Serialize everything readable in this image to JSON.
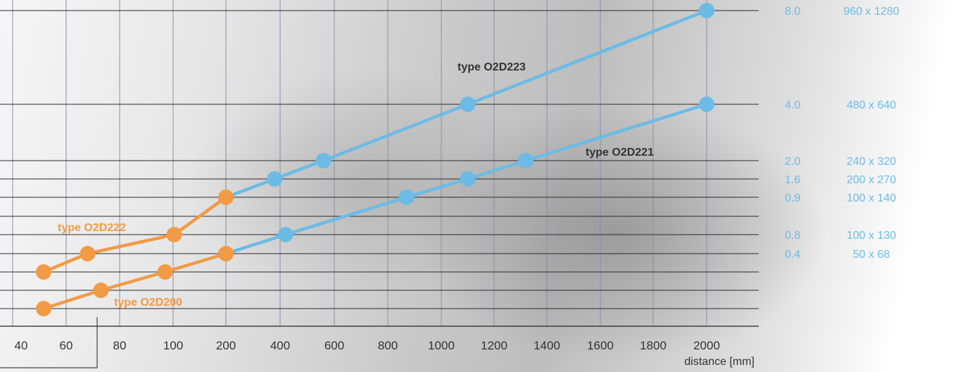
{
  "chart_data": {
    "type": "line",
    "xlabel": "distance [mm]",
    "x_ticks": [
      "40",
      "60",
      "80",
      "100",
      "200",
      "400",
      "600",
      "800",
      "1000",
      "1200",
      "1400",
      "1600",
      "1800",
      "2000"
    ],
    "y_levels": [
      {
        "value": "8.0",
        "resolution": "960 x 1280"
      },
      {
        "value": "4.0",
        "resolution": "480 x 640"
      },
      {
        "value": "2.0",
        "resolution": "240 x 320"
      },
      {
        "value": "1.6",
        "resolution": "200 x 270"
      },
      {
        "value": "0.9",
        "resolution": "100 x 140"
      },
      {
        "value": "0.8",
        "resolution": "100 x 130"
      },
      {
        "value": "0.4",
        "resolution": "50 x 68"
      }
    ],
    "series": [
      {
        "name": "type O2D223",
        "color": "#6bbbe6",
        "points": [
          {
            "x": 200,
            "y": 0.9
          },
          {
            "x": 380,
            "y": 1.6
          },
          {
            "x": 560,
            "y": 2.0
          },
          {
            "x": 1100,
            "y": 4.0
          },
          {
            "x": 2000,
            "y": 8.0
          }
        ]
      },
      {
        "name": "type O2D221",
        "color": "#6bbbe6",
        "points": [
          {
            "x": 200,
            "y": 0.4
          },
          {
            "x": 420,
            "y": 0.8
          },
          {
            "x": 870,
            "y": 0.9
          },
          {
            "x": 1100,
            "y": 1.6
          },
          {
            "x": 1320,
            "y": 2.0
          },
          {
            "x": 2000,
            "y": 4.0
          }
        ]
      },
      {
        "name": "type O2D222",
        "color": "#f29a45",
        "points": [
          {
            "x": 50,
            "y": 0.24
          },
          {
            "x": 68,
            "y": 0.4
          },
          {
            "x": 102,
            "y": 0.8
          },
          {
            "x": 200,
            "y": 0.9
          }
        ]
      },
      {
        "name": "type O2D200",
        "color": "#f29a45",
        "points": [
          {
            "x": 50,
            "y": 0.12
          },
          {
            "x": 73,
            "y": 0.2
          },
          {
            "x": 97,
            "y": 0.24
          },
          {
            "x": 200,
            "y": 0.4
          }
        ]
      }
    ],
    "grid": true
  }
}
